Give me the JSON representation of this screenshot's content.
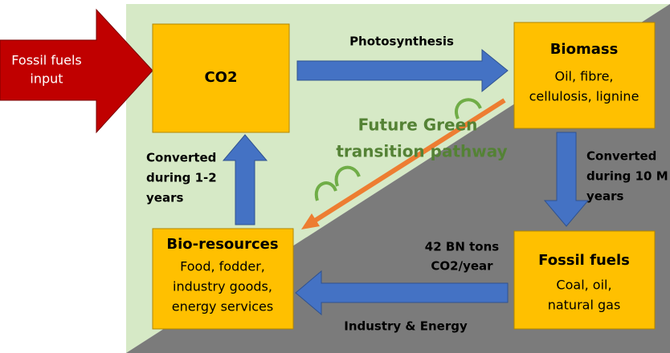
{
  "input": {
    "label": [
      "Fossil fuels",
      "input"
    ]
  },
  "nodes": [
    {
      "title": "CO2",
      "text": []
    },
    {
      "title": "Biomass",
      "text": [
        "Oil, fibre,",
        "cellulosis, lignine"
      ]
    },
    {
      "title": "Fossil fuels",
      "text": [
        "Coal, oil,",
        "natural gas"
      ]
    },
    {
      "title": "Bio-resources",
      "text": [
        "Food, fodder,",
        "industry goods,",
        "energy services"
      ]
    }
  ],
  "edges": [
    {
      "label": [
        "Photosynthesis"
      ]
    },
    {
      "label": [
        "Converted",
        "during 10 M",
        "years"
      ]
    },
    {
      "label": [
        "42 BN tons",
        "CO2/year"
      ]
    },
    {
      "label": [
        "Industry & Energy"
      ]
    },
    {
      "label": [
        "Converted",
        "during 1-2",
        "years"
      ]
    }
  ],
  "pathway": {
    "label": [
      "Future Green",
      "transition pathway"
    ]
  }
}
